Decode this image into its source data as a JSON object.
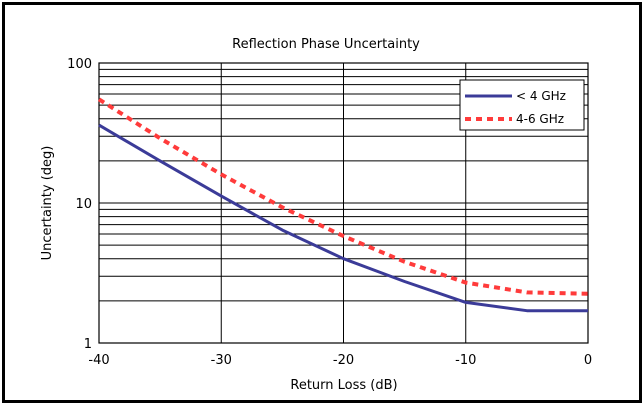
{
  "chart_data": {
    "type": "line",
    "title": "Reflection Phase Uncertainty",
    "xlabel": "Return Loss (dB)",
    "ylabel": "Uncertainty (deg)",
    "xlim": [
      -40,
      0
    ],
    "ylim": [
      1,
      100
    ],
    "yscale": "log",
    "x_ticks": [
      "-40",
      "-30",
      "-20",
      "-10",
      "0"
    ],
    "y_ticks": [
      "1",
      "10",
      "100"
    ],
    "grid": true,
    "legend_position": "top-right",
    "series": [
      {
        "name": "< 4 GHz",
        "color": "#3b3b98",
        "style": "solid",
        "x": [
          -40,
          -35,
          -30,
          -25,
          -20,
          -15,
          -10,
          -5,
          0
        ],
        "y": [
          36,
          20,
          11.2,
          6.4,
          4.0,
          2.75,
          1.95,
          1.7,
          1.7
        ]
      },
      {
        "name": "4-6 GHz",
        "color": "#ff3b3b",
        "style": "dashed",
        "x": [
          -40,
          -35,
          -30,
          -25,
          -20,
          -15,
          -10,
          -5,
          0
        ],
        "y": [
          55,
          29,
          16,
          9.3,
          5.8,
          3.8,
          2.7,
          2.3,
          2.25
        ]
      }
    ]
  }
}
